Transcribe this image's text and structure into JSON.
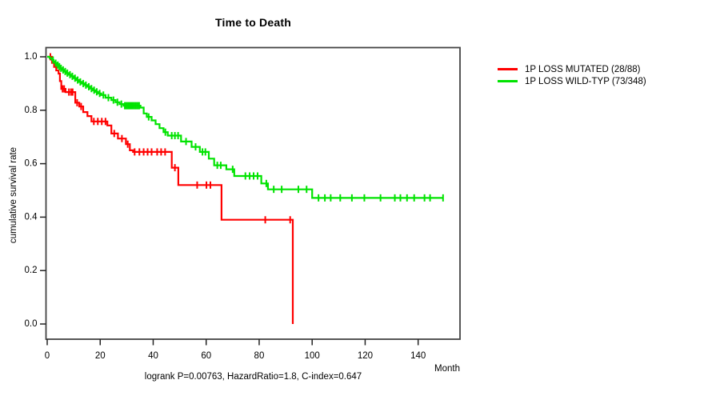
{
  "figure": {
    "title": "Time to Death",
    "x_axis_label": "Month",
    "y_axis_label": "cumulative survival rate",
    "annotation": "logrank P=0.00763, HazardRatio=1.8, C-index=0.647"
  },
  "chart_data": {
    "type": "line",
    "subtype": "kaplan-meier-step",
    "title": "Time to Death",
    "xlabel": "Month",
    "ylabel": "cumulative survival rate",
    "xlim": [
      0,
      156
    ],
    "ylim": [
      0,
      1.04
    ],
    "xticks": [
      0,
      20,
      40,
      60,
      80,
      100,
      120,
      140
    ],
    "yticks": [
      0.0,
      0.2,
      0.4,
      0.6,
      0.8,
      1.0
    ],
    "grid": false,
    "legend_position": "right-outside",
    "axis_color": "#444444",
    "series": [
      {
        "name": "1P LOSS MUTATED (28/88)",
        "color": "#ff0000",
        "end_month": 92.7,
        "step_points": [
          [
            0,
            1.0
          ],
          [
            1.8,
            0.977
          ],
          [
            2.6,
            0.962
          ],
          [
            3.4,
            0.949
          ],
          [
            4.3,
            0.937
          ],
          [
            4.8,
            0.909
          ],
          [
            5.3,
            0.88
          ],
          [
            6.9,
            0.868
          ],
          [
            10.6,
            0.828
          ],
          [
            12.1,
            0.814
          ],
          [
            13.6,
            0.793
          ],
          [
            15.2,
            0.778
          ],
          [
            16.7,
            0.758
          ],
          [
            22.7,
            0.743
          ],
          [
            24.2,
            0.713
          ],
          [
            26.7,
            0.694
          ],
          [
            29.7,
            0.673
          ],
          [
            31.2,
            0.65
          ],
          [
            32.4,
            0.644
          ],
          [
            47.0,
            0.585
          ],
          [
            49.5,
            0.52
          ],
          [
            65.8,
            0.39
          ],
          [
            92.7,
            0.0
          ]
        ],
        "censor_months": [
          1.2,
          5.8,
          6.4,
          8.2,
          9.0,
          9.6,
          11.3,
          12.8,
          17.6,
          19.1,
          20.6,
          22.0,
          25.3,
          28.2,
          30.4,
          33.0,
          34.8,
          36.4,
          37.9,
          39.4,
          41.5,
          43.0,
          44.5,
          48.2,
          56.6,
          60.1,
          61.6,
          82.3,
          91.7
        ]
      },
      {
        "name": "1P LOSS WILD-TYP (73/348)",
        "color": "#00e300",
        "end_month": 149.4,
        "step_points": [
          [
            0,
            1.0
          ],
          [
            1.0,
            0.994
          ],
          [
            1.8,
            0.988
          ],
          [
            2.4,
            0.982
          ],
          [
            3.0,
            0.976
          ],
          [
            3.6,
            0.969
          ],
          [
            4.2,
            0.963
          ],
          [
            4.8,
            0.957
          ],
          [
            5.6,
            0.951
          ],
          [
            6.4,
            0.945
          ],
          [
            7.2,
            0.939
          ],
          [
            8.1,
            0.933
          ],
          [
            9.1,
            0.927
          ],
          [
            10.0,
            0.92
          ],
          [
            11.0,
            0.913
          ],
          [
            12.0,
            0.906
          ],
          [
            13.0,
            0.9
          ],
          [
            14.1,
            0.894
          ],
          [
            15.2,
            0.888
          ],
          [
            16.2,
            0.881
          ],
          [
            17.2,
            0.875
          ],
          [
            18.2,
            0.869
          ],
          [
            19.2,
            0.863
          ],
          [
            20.4,
            0.857
          ],
          [
            22.0,
            0.847
          ],
          [
            24.2,
            0.838
          ],
          [
            25.8,
            0.83
          ],
          [
            27.3,
            0.823
          ],
          [
            28.8,
            0.817
          ],
          [
            35.2,
            0.81
          ],
          [
            36.4,
            0.788
          ],
          [
            37.6,
            0.775
          ],
          [
            39.4,
            0.762
          ],
          [
            40.9,
            0.748
          ],
          [
            42.4,
            0.733
          ],
          [
            43.9,
            0.718
          ],
          [
            45.5,
            0.705
          ],
          [
            50.5,
            0.683
          ],
          [
            54.5,
            0.663
          ],
          [
            57.6,
            0.644
          ],
          [
            61.0,
            0.619
          ],
          [
            63.0,
            0.594
          ],
          [
            67.6,
            0.579
          ],
          [
            70.6,
            0.554
          ],
          [
            80.8,
            0.526
          ],
          [
            83.3,
            0.504
          ],
          [
            100.0,
            0.472
          ]
        ],
        "censor_months": [
          2.2,
          3.2,
          4.0,
          4.6,
          5.2,
          6.0,
          6.8,
          7.6,
          8.6,
          9.5,
          10.5,
          11.5,
          12.5,
          13.6,
          14.6,
          15.7,
          16.7,
          17.7,
          18.7,
          19.8,
          21.2,
          23.1,
          25.0,
          26.5,
          28.0,
          29.3,
          29.9,
          30.5,
          31.1,
          31.7,
          32.3,
          32.9,
          33.5,
          34.1,
          34.7,
          38.3,
          44.6,
          47.0,
          48.2,
          49.4,
          52.4,
          56.0,
          58.6,
          59.7,
          64.2,
          65.5,
          70.0,
          74.8,
          76.4,
          77.9,
          79.4,
          82.7,
          85.5,
          88.5,
          94.8,
          97.9,
          102.4,
          104.8,
          107.0,
          110.6,
          115.0,
          119.7,
          125.8,
          131.2,
          133.3,
          135.8,
          138.5,
          142.4,
          144.5,
          149.4
        ]
      }
    ]
  }
}
